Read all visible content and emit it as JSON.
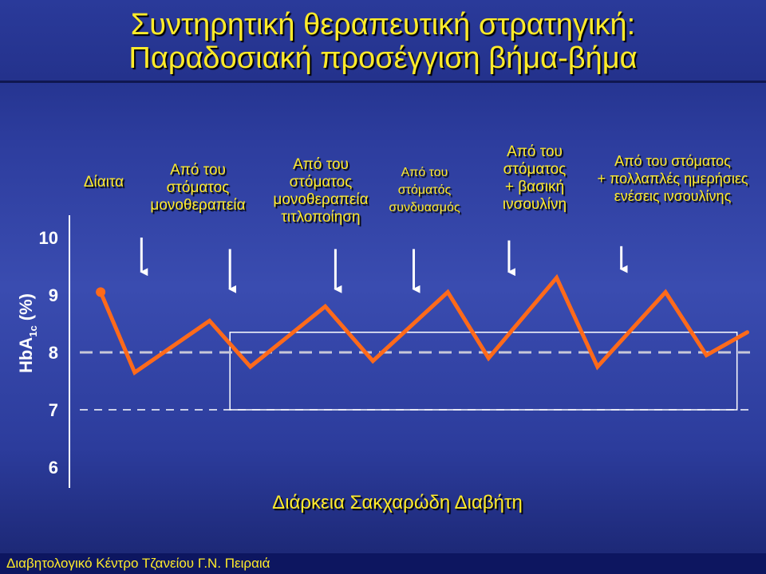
{
  "title": {
    "line1": "Συντηρητική θεραπευτική στρατηγική:",
    "line2": "Παραδοσιακή προσέγγιση βήμα-βήμα"
  },
  "stages": [
    {
      "lines": [
        "Δίαιτα"
      ]
    },
    {
      "lines": [
        "Από του",
        "στόματος",
        "μονοθεραπεία"
      ]
    },
    {
      "lines": [
        "Από του",
        "στόματος",
        "μονοθεραπεία",
        "τιτλοποίηση"
      ]
    },
    {
      "lines": [
        "Από του",
        "στόματός",
        "συνδυασμός"
      ]
    },
    {
      "lines": [
        "Από του",
        "στόματος",
        "+ βασική",
        "ινσουλίνη"
      ]
    },
    {
      "lines": [
        "Από του στόματος",
        "+ πολλαπλές ημερήσιες",
        "ενέσεις ινσουλίνης"
      ]
    }
  ],
  "footer": "Διαβητολογικό Κέντρο Τζανείου Γ.Ν. Πειραιά",
  "colors": {
    "title_text": "#ffeb2a",
    "line": "#ff6a1a",
    "arrow": "#ffffff",
    "threshold": "#c8c8d8",
    "background": "#2d3d9e"
  },
  "chart_data": {
    "type": "line",
    "ylabel_main": "HbA",
    "ylabel_sub": "1c",
    "ylabel_unit": " (%)",
    "xlabel": "Διάρκεια Σακχαρώδη Διαβήτη",
    "yticks": [
      "6",
      "7",
      "8",
      "9",
      "10"
    ],
    "ylim": [
      6,
      10
    ],
    "xlim": [
      0,
      10
    ],
    "series": [
      {
        "x": [
          0.4,
          0.9,
          2.0,
          2.6,
          3.7,
          4.4,
          5.5,
          6.1,
          7.1,
          7.7,
          8.7,
          9.3,
          9.9
        ],
        "y": [
          9.05,
          7.65,
          8.55,
          7.75,
          8.8,
          7.85,
          9.05,
          7.9,
          9.3,
          7.75,
          9.05,
          7.95,
          8.35
        ]
      }
    ],
    "threshold_lines": [
      {
        "y": 8.0,
        "style": "dashed",
        "emphasis": "strong"
      },
      {
        "y": 7.0,
        "style": "dashed",
        "emphasis": "light"
      }
    ],
    "target_box": {
      "y_range": [
        7.0,
        8.35
      ],
      "x_range": [
        2.3,
        9.75
      ]
    },
    "start_marker": {
      "x": 0.4,
      "y": 9.05
    },
    "intervention_arrows": [
      {
        "x": 1.0,
        "y_from": 10.0,
        "y_to": 9.4
      },
      {
        "x": 2.3,
        "y_from": 9.8,
        "y_to": 9.1
      },
      {
        "x": 3.85,
        "y_from": 9.8,
        "y_to": 9.1
      },
      {
        "x": 5.0,
        "y_from": 9.8,
        "y_to": 9.1
      },
      {
        "x": 6.4,
        "y_from": 9.95,
        "y_to": 9.4
      },
      {
        "x": 8.05,
        "y_from": 9.85,
        "y_to": 9.45
      }
    ]
  }
}
